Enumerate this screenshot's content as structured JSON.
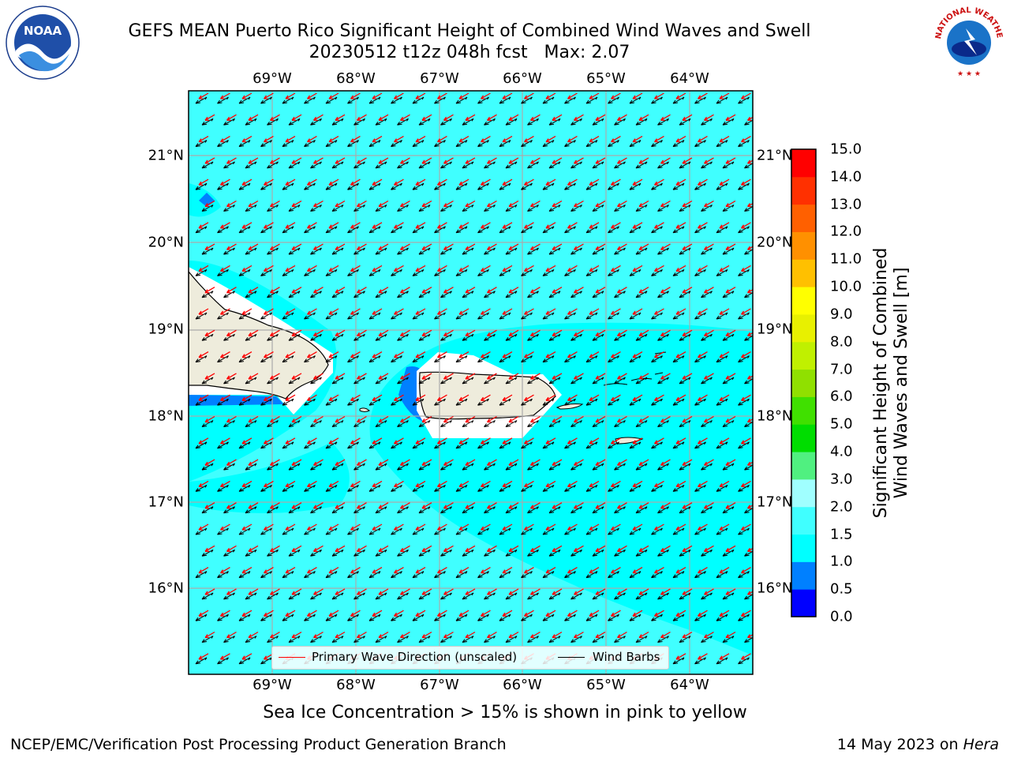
{
  "title": {
    "line1": "GEFS MEAN Puerto Rico Significant Height of Combined Wind Waves and Swell",
    "line2": "20230512 t12z 048h fcst   Max: 2.07"
  },
  "logos": {
    "noaa": "NOAA",
    "nws": "NATIONAL WEATHER SERVICE"
  },
  "map": {
    "lon_ticks": [
      "69°W",
      "68°W",
      "67°W",
      "66°W",
      "65°W",
      "64°W"
    ],
    "lat_ticks": [
      "21°N",
      "20°N",
      "19°N",
      "18°N",
      "17°N",
      "16°N"
    ],
    "extent": {
      "lon": [
        -70.0,
        -63.25
      ],
      "lat": [
        15.1,
        21.75
      ]
    },
    "colors": {
      "ocean_1_5": "#00ffff",
      "ocean_1_5_2": "#40ffff",
      "ocean_0_5_1": "#0080ff",
      "land": "#eeecdc",
      "wave_arrow": "#ff0000",
      "wind_barb": "#000000"
    }
  },
  "legend": {
    "primary_wave": "Primary Wave Direction (unscaled)",
    "wind_barbs": "Wind Barbs"
  },
  "colorbar": {
    "label_line1": "Significant Height of Combined",
    "label_line2": "Wind Waves and Swell [m]",
    "ticks": [
      "15.0",
      "14.0",
      "13.0",
      "12.0",
      "11.0",
      "10.0",
      "9.0",
      "8.0",
      "7.0",
      "6.0",
      "5.0",
      "4.0",
      "3.0",
      "2.0",
      "1.5",
      "1.0",
      "0.5",
      "0.0"
    ],
    "colors": [
      "#0000ff",
      "#0080ff",
      "#00ffff",
      "#40ffff",
      "#a0ffff",
      "#50f080",
      "#00dd00",
      "#40e000",
      "#90e000",
      "#c0f000",
      "#e8f000",
      "#ffff00",
      "#ffc000",
      "#ff9000",
      "#ff6000",
      "#ff3000",
      "#ff0000"
    ]
  },
  "note": "Sea Ice Concentration > 15% is shown in pink to yellow",
  "footer": {
    "left": "NCEP/EMC/Verification Post Processing Product Generation Branch",
    "right_date": "14 May 2023 on ",
    "right_host": "Hera"
  }
}
